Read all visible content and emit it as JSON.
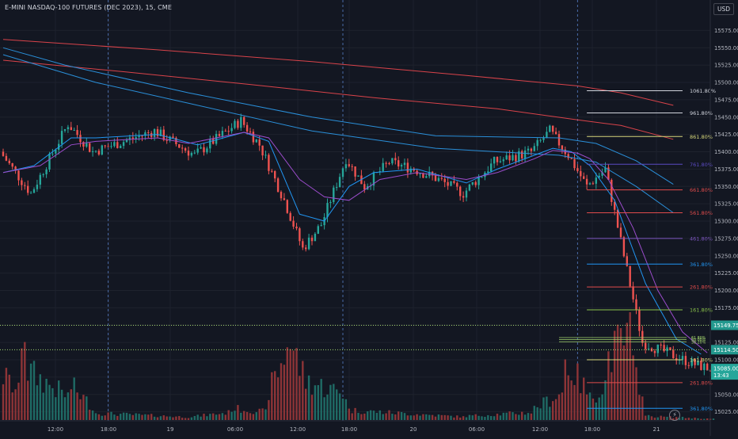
{
  "header": {
    "title": "E-MINI NASDAQ-100 FUTURES (DEC 2023), 15, CME",
    "currency": "USD"
  },
  "colors": {
    "background": "#131722",
    "grid": "#1e222d",
    "up": "#26a69a",
    "down": "#ef5350",
    "vol_up": "#1f6b65",
    "vol_down": "#8d3437",
    "sma_blue": "#2196f3",
    "ema_purple": "#9c4dcc",
    "long_red": "#d9434a",
    "long_blue": "#2a8fd9",
    "current_price": "#26a69a",
    "dotted_green": "#a5d66f"
  },
  "chart_data": {
    "type": "candlestick",
    "timeframe": "15",
    "x_axis": {
      "tick_labels": [
        "12:00",
        "18:00",
        "19",
        "06:00",
        "12:00",
        "18:00",
        "20",
        "06:00",
        "12:00",
        "18:00",
        "21"
      ]
    },
    "y_axis": {
      "range": [
        15012,
        15612
      ],
      "tick_labels": [
        "15575.00",
        "15550.00",
        "15525.00",
        "15500.00",
        "15475.00",
        "15450.00",
        "15425.00",
        "15400.00",
        "15375.00",
        "15350.00",
        "15325.00",
        "15300.00",
        "15275.00",
        "15250.00",
        "15225.00",
        "15200.00",
        "15175.00",
        "15150.00",
        "15125.00",
        "15100.00",
        "15075.00",
        "15050.00",
        "15025.00"
      ]
    },
    "price_segments": [
      {
        "from_idx": 0,
        "to_idx": 10,
        "from": 15400,
        "to": 15340
      },
      {
        "from_idx": 10,
        "to_idx": 22,
        "from": 15340,
        "to": 15440
      },
      {
        "from_idx": 22,
        "to_idx": 30,
        "from": 15440,
        "to": 15400
      },
      {
        "from_idx": 30,
        "to_idx": 50,
        "from": 15400,
        "to": 15430
      },
      {
        "from_idx": 50,
        "to_idx": 63,
        "from": 15430,
        "to": 15395
      },
      {
        "from_idx": 63,
        "to_idx": 78,
        "from": 15395,
        "to": 15445
      },
      {
        "from_idx": 78,
        "to_idx": 84,
        "from": 15445,
        "to": 15410
      },
      {
        "from_idx": 84,
        "to_idx": 92,
        "from": 15410,
        "to": 15330
      },
      {
        "from_idx": 92,
        "to_idx": 98,
        "from": 15330,
        "to": 15260
      },
      {
        "from_idx": 98,
        "to_idx": 104,
        "from": 15260,
        "to": 15295
      },
      {
        "from_idx": 104,
        "to_idx": 112,
        "from": 15295,
        "to": 15390
      },
      {
        "from_idx": 112,
        "to_idx": 118,
        "from": 15390,
        "to": 15350
      },
      {
        "from_idx": 118,
        "to_idx": 126,
        "from": 15350,
        "to": 15385
      },
      {
        "from_idx": 126,
        "to_idx": 134,
        "from": 15385,
        "to": 15375
      },
      {
        "from_idx": 134,
        "to_idx": 142,
        "from": 15375,
        "to": 15360
      },
      {
        "from_idx": 142,
        "to_idx": 150,
        "from": 15360,
        "to": 15340
      },
      {
        "from_idx": 150,
        "to_idx": 160,
        "from": 15340,
        "to": 15385
      },
      {
        "from_idx": 160,
        "to_idx": 172,
        "from": 15385,
        "to": 15400
      },
      {
        "from_idx": 172,
        "to_idx": 178,
        "from": 15400,
        "to": 15430
      },
      {
        "from_idx": 178,
        "to_idx": 184,
        "from": 15430,
        "to": 15395
      },
      {
        "from_idx": 184,
        "to_idx": 190,
        "from": 15395,
        "to": 15350
      },
      {
        "from_idx": 190,
        "to_idx": 196,
        "from": 15350,
        "to": 15375
      },
      {
        "from_idx": 196,
        "to_idx": 202,
        "from": 15375,
        "to": 15250
      },
      {
        "from_idx": 202,
        "to_idx": 208,
        "from": 15250,
        "to": 15125
      },
      {
        "from_idx": 208,
        "to_idx": 216,
        "from": 15125,
        "to": 15110
      },
      {
        "from_idx": 216,
        "to_idx": 224,
        "from": 15110,
        "to": 15095
      },
      {
        "from_idx": 224,
        "to_idx": 231,
        "from": 15095,
        "to": 15085
      }
    ],
    "volume_profile": [
      {
        "from_idx": 0,
        "to_idx": 6,
        "from": 0.45,
        "to": 0.25
      },
      {
        "from_idx": 6,
        "to_idx": 8,
        "from": 0.95,
        "to": 0.95
      },
      {
        "from_idx": 8,
        "to_idx": 22,
        "from": 0.5,
        "to": 0.22
      },
      {
        "from_idx": 22,
        "to_idx": 30,
        "from": 0.35,
        "to": 0.1
      },
      {
        "from_idx": 30,
        "to_idx": 60,
        "from": 0.07,
        "to": 0.03
      },
      {
        "from_idx": 60,
        "to_idx": 74,
        "from": 0.03,
        "to": 0.08
      },
      {
        "from_idx": 74,
        "to_idx": 86,
        "from": 0.12,
        "to": 0.08
      },
      {
        "from_idx": 86,
        "to_idx": 92,
        "from": 0.3,
        "to": 0.7
      },
      {
        "from_idx": 92,
        "to_idx": 98,
        "from": 0.85,
        "to": 0.4
      },
      {
        "from_idx": 98,
        "to_idx": 112,
        "from": 0.4,
        "to": 0.25
      },
      {
        "from_idx": 112,
        "to_idx": 150,
        "from": 0.1,
        "to": 0.03
      },
      {
        "from_idx": 150,
        "to_idx": 172,
        "from": 0.04,
        "to": 0.08
      },
      {
        "from_idx": 172,
        "to_idx": 182,
        "from": 0.12,
        "to": 0.3
      },
      {
        "from_idx": 182,
        "to_idx": 190,
        "from": 0.6,
        "to": 0.25
      },
      {
        "from_idx": 190,
        "to_idx": 196,
        "from": 0.22,
        "to": 0.4
      },
      {
        "from_idx": 196,
        "to_idx": 204,
        "from": 0.65,
        "to": 0.9
      },
      {
        "from_idx": 204,
        "to_idx": 208,
        "from": 0.5,
        "to": 0.3
      },
      {
        "from_idx": 208,
        "to_idx": 231,
        "from": 0.04,
        "to": 0.01
      }
    ],
    "series": [
      {
        "name": "",
        "kind": "long_red_upper",
        "color": "#d9434a",
        "points": [
          [
            0,
            15562
          ],
          [
            50,
            15547
          ],
          [
            100,
            15530
          ],
          [
            150,
            15510
          ],
          [
            186,
            15495
          ],
          [
            200,
            15485
          ],
          [
            217,
            15467
          ]
        ]
      },
      {
        "name": "",
        "kind": "long_red_lower",
        "color": "#d9434a",
        "points": [
          [
            0,
            15532
          ],
          [
            40,
            15515
          ],
          [
            80,
            15497
          ],
          [
            120,
            15478
          ],
          [
            160,
            15462
          ],
          [
            186,
            15446
          ],
          [
            200,
            15438
          ],
          [
            217,
            15418
          ]
        ]
      },
      {
        "name": "",
        "kind": "long_blue_upper",
        "color": "#2a8fd9",
        "points": [
          [
            0,
            15550
          ],
          [
            20,
            15525
          ],
          [
            60,
            15485
          ],
          [
            100,
            15450
          ],
          [
            140,
            15423
          ],
          [
            180,
            15420
          ],
          [
            192,
            15412
          ],
          [
            205,
            15387
          ],
          [
            217,
            15353
          ]
        ]
      },
      {
        "name": "",
        "kind": "long_blue_lower",
        "color": "#2a8fd9",
        "points": [
          [
            0,
            15540
          ],
          [
            30,
            15500
          ],
          [
            60,
            15470
          ],
          [
            100,
            15430
          ],
          [
            140,
            15405
          ],
          [
            180,
            15395
          ],
          [
            192,
            15385
          ],
          [
            205,
            15350
          ],
          [
            217,
            15312
          ]
        ]
      },
      {
        "name": "",
        "kind": "sma",
        "color": "#2196f3",
        "points": [
          [
            0,
            15370
          ],
          [
            10,
            15380
          ],
          [
            22,
            15420
          ],
          [
            30,
            15420
          ],
          [
            50,
            15425
          ],
          [
            63,
            15410
          ],
          [
            78,
            15428
          ],
          [
            86,
            15415
          ],
          [
            96,
            15310
          ],
          [
            104,
            15300
          ],
          [
            112,
            15350
          ],
          [
            120,
            15370
          ],
          [
            134,
            15375
          ],
          [
            150,
            15355
          ],
          [
            160,
            15375
          ],
          [
            172,
            15395
          ],
          [
            178,
            15405
          ],
          [
            184,
            15400
          ],
          [
            190,
            15380
          ],
          [
            198,
            15330
          ],
          [
            208,
            15210
          ],
          [
            218,
            15130
          ],
          [
            226,
            15108
          ]
        ]
      },
      {
        "name": "",
        "kind": "ema",
        "color": "#9c4dcc",
        "points": [
          [
            0,
            15370
          ],
          [
            12,
            15380
          ],
          [
            22,
            15410
          ],
          [
            30,
            15415
          ],
          [
            50,
            15420
          ],
          [
            60,
            15412
          ],
          [
            78,
            15428
          ],
          [
            86,
            15420
          ],
          [
            96,
            15360
          ],
          [
            104,
            15335
          ],
          [
            112,
            15330
          ],
          [
            122,
            15360
          ],
          [
            134,
            15370
          ],
          [
            150,
            15360
          ],
          [
            160,
            15370
          ],
          [
            172,
            15390
          ],
          [
            178,
            15402
          ],
          [
            186,
            15398
          ],
          [
            190,
            15390
          ],
          [
            196,
            15360
          ],
          [
            204,
            15290
          ],
          [
            212,
            15200
          ],
          [
            220,
            15140
          ],
          [
            228,
            15110
          ]
        ]
      }
    ],
    "fib_levels": [
      {
        "label": "1061.80%",
        "value": 15488,
        "color": "#d1d4dc",
        "x_start": 189
      },
      {
        "label": "961.80%",
        "value": 15456,
        "color": "#d1d4dc",
        "x_start": 189
      },
      {
        "label": "861.80%",
        "value": 15422,
        "color": "#d6d67a",
        "x_start": 189
      },
      {
        "label": "761.80%",
        "value": 15382,
        "color": "#5b4ac1",
        "x_start": 189
      },
      {
        "label": "661.80%",
        "value": 15345,
        "color": "#e04b4b",
        "x_start": 189
      },
      {
        "label": "561.80%",
        "value": 15312,
        "color": "#e04b4b",
        "x_start": 189
      },
      {
        "label": "461.80%",
        "value": 15275,
        "color": "#7e57c2",
        "x_start": 189
      },
      {
        "label": "361.80%",
        "value": 15238,
        "color": "#2196f3",
        "x_start": 189
      },
      {
        "label": "261.80%",
        "value": 15205,
        "color": "#e04b4b",
        "x_start": 189
      },
      {
        "label": "161.80%",
        "value": 15172,
        "color": "#8bc34a",
        "x_start": 189
      },
      {
        "label": "161.80%",
        "value": 15100,
        "color": "#d6d67a",
        "x_start": 189
      },
      {
        "label": "261.80%",
        "value": 15067,
        "color": "#e04b4b",
        "x_start": 189
      },
      {
        "label": "361.80%",
        "value": 15030,
        "color": "#2196f3",
        "x_start": 189
      }
    ],
    "fib_small_labels": [
      {
        "label": "61.80%",
        "value": 15132,
        "color": "#a5d66f"
      },
      {
        "label": "50.00%",
        "value": 15129,
        "color": "#a5d66f"
      },
      {
        "label": "38.20%",
        "value": 15126,
        "color": "#a5d66f"
      }
    ],
    "horizontal_lines": [
      {
        "value": 15149.75,
        "label": "15149.75",
        "color": "#a5d66f",
        "style": "dotted"
      },
      {
        "value": 15114.5,
        "label": "15114.50",
        "color": "#a5d66f",
        "style": "dotted"
      }
    ],
    "current_price": {
      "value": 15085.0,
      "label": "15085.00",
      "countdown": "13:43",
      "color": "#26a69a"
    },
    "vertical_lines": [
      {
        "idx": 34,
        "style": "dashed"
      },
      {
        "idx": 110,
        "style": "dashed"
      },
      {
        "idx": 186,
        "style": "dashed"
      }
    ],
    "grid": true,
    "legend": "none"
  }
}
